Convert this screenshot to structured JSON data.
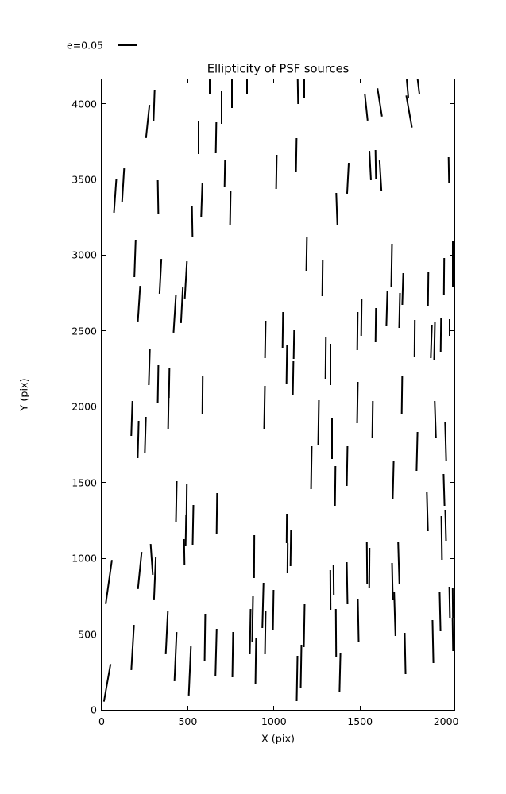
{
  "figure": {
    "title": "Ellipticity of PSF sources",
    "legend_label": "e=0.05",
    "xlabel": "X (pix)",
    "ylabel": "Y (pix)",
    "colors": {
      "line": "#000000",
      "background": "#ffffff",
      "text": "#000000"
    }
  },
  "chart_data": {
    "type": "line",
    "subtype": "ellipticity-whisker-segments",
    "title": "Ellipticity of PSF sources",
    "xlabel": "X (pix)",
    "ylabel": "Y (pix)",
    "xlim": [
      0,
      2048
    ],
    "ylim": [
      0,
      4160
    ],
    "xticks": [
      0,
      500,
      1000,
      1500,
      2000
    ],
    "yticks": [
      0,
      500,
      1000,
      1500,
      2000,
      2500,
      3000,
      3500,
      4000
    ],
    "grid": false,
    "legend": {
      "label": "e=0.05",
      "position": "upper-left-outside"
    },
    "segment_format": [
      "x_pix",
      "y_pix",
      "tilt_deg_from_vertical",
      "length_pix"
    ],
    "segments": [
      [
        268,
        3880,
        6,
        220
      ],
      [
        304,
        3989,
        2,
        210
      ],
      [
        564,
        3775,
        0,
        215
      ],
      [
        664,
        3775,
        1,
        205
      ],
      [
        78,
        3395,
        4,
        225
      ],
      [
        124,
        3459,
        3.5,
        225
      ],
      [
        326,
        3384,
        -1,
        220
      ],
      [
        579,
        3364,
        2,
        220
      ],
      [
        628,
        4140,
        0,
        160
      ],
      [
        696,
        3977,
        0,
        220
      ],
      [
        758,
        4072,
        0,
        200
      ],
      [
        843,
        4150,
        0,
        170
      ],
      [
        1141,
        4087,
        -1,
        180
      ],
      [
        1174,
        4112,
        0,
        140
      ],
      [
        1128,
        3661,
        1,
        220
      ],
      [
        1014,
        3552,
        1,
        225
      ],
      [
        717,
        3539,
        1,
        185
      ],
      [
        748,
        3316,
        1,
        225
      ],
      [
        1365,
        3303,
        -2,
        215
      ],
      [
        1534,
        3976,
        -6,
        178
      ],
      [
        1614,
        4007,
        -9,
        188
      ],
      [
        1774,
        4100,
        -5,
        120
      ],
      [
        1784,
        3947,
        -10,
        215
      ],
      [
        1835,
        4150,
        -7,
        180
      ],
      [
        1561,
        3591,
        -3,
        195
      ],
      [
        1592,
        3596,
        -1,
        193
      ],
      [
        1620,
        3525,
        -3.5,
        203
      ],
      [
        1430,
        3508,
        3,
        203
      ],
      [
        2018,
        3561,
        -1,
        173
      ],
      [
        524,
        3226,
        -1,
        205
      ],
      [
        196,
        2980,
        2,
        245
      ],
      [
        218,
        2678,
        3.7,
        238
      ],
      [
        342,
        2860,
        3,
        232
      ],
      [
        426,
        2614,
        3.6,
        250
      ],
      [
        464,
        2669,
        3,
        238
      ],
      [
        489,
        2840,
        3.3,
        245
      ],
      [
        277,
        2258,
        1.7,
        238
      ],
      [
        1191,
        3010,
        1,
        227
      ],
      [
        1284,
        2850,
        0.7,
        240
      ],
      [
        948,
        2443,
        1,
        248
      ],
      [
        1051,
        2507,
        0.8,
        236
      ],
      [
        1073,
        2280,
        0.8,
        254
      ],
      [
        1118,
        2415,
        1,
        192
      ],
      [
        1112,
        2192,
        1,
        219
      ],
      [
        1302,
        2323,
        0.6,
        271
      ],
      [
        1328,
        2280,
        0,
        271
      ],
      [
        1683,
        2932,
        1,
        289
      ],
      [
        1748,
        2778,
        1.7,
        212
      ],
      [
        1730,
        2638,
        1.3,
        229
      ],
      [
        1656,
        2647,
        1.6,
        229
      ],
      [
        1894,
        2774,
        0.7,
        227
      ],
      [
        1989,
        2861,
        0.5,
        245
      ],
      [
        2039,
        2944,
        0,
        304
      ],
      [
        1483,
        2498,
        0.7,
        254
      ],
      [
        1508,
        2590,
        0.7,
        245
      ],
      [
        1593,
        2538,
        0.7,
        227
      ],
      [
        1818,
        2450,
        0.5,
        245
      ],
      [
        1915,
        2433,
        1.9,
        220
      ],
      [
        1933,
        2433,
        1.2,
        256
      ],
      [
        1971,
        2476,
        0.7,
        227
      ],
      [
        2022,
        2524,
        0,
        110
      ],
      [
        326,
        2153,
        1,
        245
      ],
      [
        391,
        2154,
        1,
        194
      ],
      [
        387,
        1954,
        1,
        205
      ],
      [
        586,
        2076,
        0.5,
        257
      ],
      [
        174,
        1921,
        1.9,
        229
      ],
      [
        212,
        1781,
        1.5,
        247
      ],
      [
        254,
        1812,
        1.7,
        238
      ],
      [
        433,
        1375,
        1.1,
        273
      ],
      [
        495,
        1381,
        0.6,
        224
      ],
      [
        490,
        1182,
        1,
        210
      ],
      [
        531,
        1221,
        1.1,
        264
      ],
      [
        668,
        1296,
        0.7,
        273
      ],
      [
        944,
        1994,
        1,
        283
      ],
      [
        1261,
        1895,
        0.9,
        299
      ],
      [
        1336,
        1790,
        0,
        271
      ],
      [
        1220,
        1598,
        0.9,
        282
      ],
      [
        1356,
        1475,
        0.7,
        264
      ],
      [
        1484,
        2028,
        1,
        275
      ],
      [
        1575,
        1917,
        0.8,
        245
      ],
      [
        1745,
        2072,
        0.8,
        252
      ],
      [
        1829,
        1707,
        1.4,
        256
      ],
      [
        1424,
        1611,
        1,
        262
      ],
      [
        1694,
        1515,
        1.4,
        256
      ],
      [
        1937,
        1913,
        -1.9,
        247
      ],
      [
        1995,
        1772,
        -1.6,
        264
      ],
      [
        1990,
        1449,
        -1.7,
        212
      ],
      [
        1892,
        1305,
        -1.6,
        256
      ],
      [
        1999,
        1217,
        -1.5,
        203
      ],
      [
        40,
        844,
        8,
        294
      ],
      [
        221,
        917,
        5.7,
        247
      ],
      [
        290,
        991,
        -4,
        205
      ],
      [
        307,
        868,
        2.4,
        290
      ],
      [
        478,
        1043,
        -1,
        168
      ],
      [
        179,
        410,
        3.4,
        299
      ],
      [
        32,
        180,
        10,
        252
      ],
      [
        380,
        510,
        2.8,
        290
      ],
      [
        431,
        353,
        2.5,
        325
      ],
      [
        510,
        257,
        2.5,
        323
      ],
      [
        601,
        475,
        0.8,
        314
      ],
      [
        663,
        379,
        1.5,
        315
      ],
      [
        884,
        1010,
        0.3,
        283
      ],
      [
        1076,
        1197,
        0.5,
        194
      ],
      [
        1080,
        1002,
        0.5,
        199
      ],
      [
        1096,
        1065,
        0.8,
        236
      ],
      [
        878,
        597,
        1,
        304
      ],
      [
        863,
        514,
        1,
        299
      ],
      [
        936,
        689,
        1.5,
        299
      ],
      [
        949,
        510,
        0.9,
        290
      ],
      [
        998,
        656,
        0.9,
        268
      ],
      [
        762,
        366,
        0.9,
        299
      ],
      [
        895,
        322,
        0.8,
        299
      ],
      [
        1175,
        558,
        1,
        282
      ],
      [
        1157,
        283,
        1,
        290
      ],
      [
        1136,
        209,
        1,
        299
      ],
      [
        1329,
        790,
        -0.4,
        262
      ],
      [
        1346,
        855,
        -0.6,
        201
      ],
      [
        1359,
        510,
        -0.4,
        314
      ],
      [
        1542,
        967,
        -0.5,
        278
      ],
      [
        1555,
        938,
        0.5,
        262
      ],
      [
        1426,
        833,
        -1,
        279
      ],
      [
        1492,
        589,
        -1.1,
        282
      ],
      [
        1687,
        846,
        -1.2,
        247
      ],
      [
        1704,
        632,
        -1.7,
        290
      ],
      [
        1725,
        968,
        -1.7,
        278
      ],
      [
        1764,
        370,
        -1.2,
        273
      ],
      [
        1924,
        453,
        -1.2,
        282
      ],
      [
        1967,
        650,
        -1.3,
        256
      ],
      [
        2022,
        711,
        -1.1,
        203
      ],
      [
        1972,
        1135,
        -0.8,
        288
      ],
      [
        2039,
        708,
        -0.5,
        199
      ],
      [
        2041,
        498,
        -0.8,
        220
      ],
      [
        1384,
        248,
        1.4,
        256
      ]
    ]
  }
}
